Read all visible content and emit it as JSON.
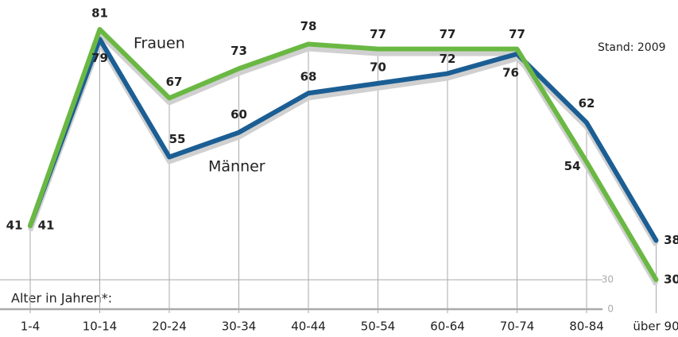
{
  "chart_data": {
    "type": "line",
    "categories": [
      "1-4",
      "10-14",
      "20-24",
      "30-34",
      "40-44",
      "50-54",
      "60-64",
      "70-74",
      "80-84",
      "über 90"
    ],
    "series": [
      {
        "name": "Frauen",
        "color": "#6ab843",
        "values": [
          41,
          81,
          67,
          73,
          78,
          77,
          77,
          77,
          54,
          30
        ]
      },
      {
        "name": "Männer",
        "color": "#1b5e94",
        "values": [
          41,
          79,
          55,
          60,
          68,
          70,
          72,
          76,
          62,
          38
        ]
      }
    ],
    "ylim": [
      24,
      83
    ],
    "yticks": [
      0,
      30
    ],
    "axis_break": true,
    "annotations": [
      "Stand: 2009",
      "Alter in Jahren*:"
    ]
  }
}
